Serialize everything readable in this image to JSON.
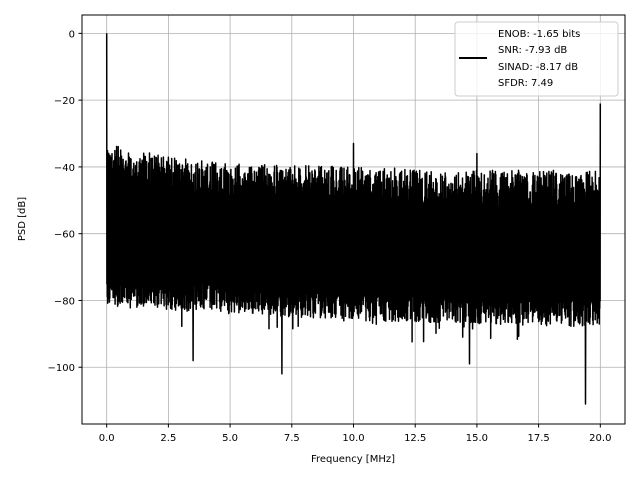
{
  "chart_data": {
    "type": "line",
    "xlabel": "Frequency [MHz]",
    "ylabel": "PSD [dB]",
    "xlim": [
      -1.0,
      21.0
    ],
    "ylim": [
      -117,
      5.5
    ],
    "xticks": [
      0.0,
      2.5,
      5.0,
      7.5,
      10.0,
      12.5,
      15.0,
      17.5,
      20.0
    ],
    "xtick_labels": [
      "0.0",
      "2.5",
      "5.0",
      "7.5",
      "10.0",
      "12.5",
      "15.0",
      "17.5",
      "20.0"
    ],
    "yticks": [
      0,
      -20,
      -40,
      -60,
      -80,
      -100
    ],
    "ytick_labels": [
      "0",
      "−20",
      "−40",
      "−60",
      "−80",
      "−100"
    ],
    "grid": true,
    "legend_position": "top-right",
    "legend_lines": [
      "ENOB: -1.65 bits",
      "SNR: -7.93 dB",
      "SINAD: -8.17 dB",
      "SFDR: 7.49"
    ],
    "series": [
      {
        "color": "#000000",
        "noise_floor_upper_db": [
          [
            0.0,
            -33
          ],
          [
            2.5,
            -37
          ],
          [
            5.0,
            -39
          ],
          [
            10.0,
            -40
          ],
          [
            15.0,
            -41
          ],
          [
            20.0,
            -41
          ]
        ],
        "noise_floor_lower_db": [
          [
            0.0,
            -80
          ],
          [
            5.0,
            -82
          ],
          [
            10.0,
            -84
          ],
          [
            20.0,
            -86
          ]
        ],
        "peaks": [
          {
            "x": 0.0,
            "y": 0
          },
          {
            "x": 10.0,
            "y": -33
          },
          {
            "x": 15.0,
            "y": -36
          },
          {
            "x": 20.0,
            "y": -21
          }
        ],
        "dips": [
          {
            "x": 7.1,
            "y": -102
          },
          {
            "x": 19.4,
            "y": -111
          },
          {
            "x": 3.5,
            "y": -98
          },
          {
            "x": 14.7,
            "y": -99
          }
        ]
      }
    ]
  }
}
